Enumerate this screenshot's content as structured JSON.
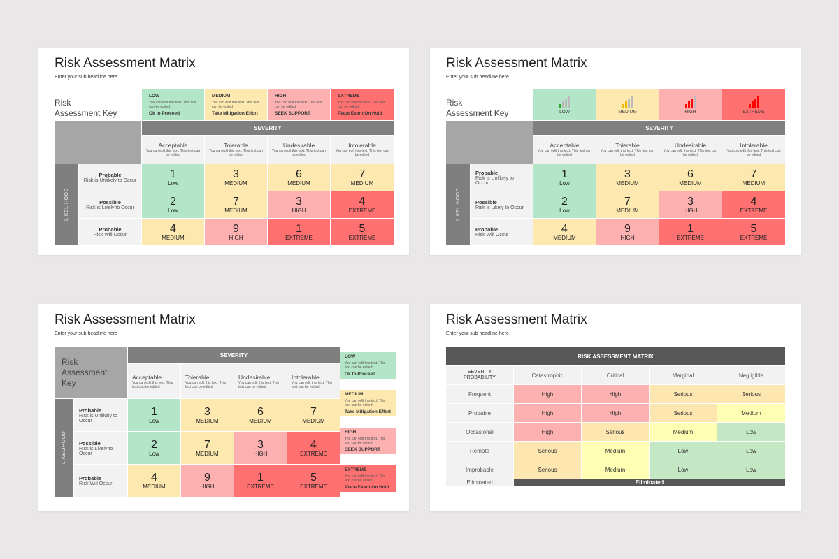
{
  "colors": {
    "low": "#b3e6c8",
    "medium": "#fde9b0",
    "high": "#fdb0b0",
    "extreme": "#ff7070"
  },
  "slides": [
    {
      "title": "Risk Assessment Matrix",
      "subtitle": "Enter your sub headline here"
    },
    {
      "title": "Risk Assessment Matrix",
      "subtitle": "Enter your sub headline here"
    },
    {
      "title": "Risk Assessment Matrix",
      "subtitle": "Enter your sub headline here"
    },
    {
      "title": "Risk Assessment Matrix",
      "subtitle": "Enter your sub headline here"
    }
  ],
  "key_label": [
    "Risk",
    "Assessment Key"
  ],
  "key": [
    {
      "level": "LOW",
      "desc": "You can edit this text. This text can be edited",
      "action": "Ok to Proceed",
      "cls": "low",
      "bars_on": 1,
      "bar_color": "#22aa22"
    },
    {
      "level": "MEDIUM",
      "desc": "You can edit this text. This text can be edited",
      "action": "Take Mitigation Effort",
      "cls": "medium",
      "bars_on": 2,
      "bar_color": "#f5b800"
    },
    {
      "level": "HIGH",
      "desc": "You can edit this text. This text can be edited",
      "action": "SEEK SUPPORT",
      "cls": "high",
      "bars_on": 3,
      "bar_color": "#ff0000"
    },
    {
      "level": "EXTREME",
      "desc": "You can edit this text. This text can be edited",
      "action": "Place Event On Hold",
      "cls": "extreme",
      "bars_on": 4,
      "bar_color": "#ff0000"
    }
  ],
  "severity_label": "SEVERITY",
  "likelihood_label": "LIKELIHOOD",
  "severity_cols": [
    {
      "name": "Acceptable",
      "desc": "You can edit this text. This text can be edited"
    },
    {
      "name": "Tolerable",
      "desc": "You can edit this text. This text can be edited"
    },
    {
      "name": "Undesirable",
      "desc": "You can edit this text. This text can be edited"
    },
    {
      "name": "Intolerable",
      "desc": "You can edit this text. This text can be edited"
    }
  ],
  "rows": [
    {
      "name": "Probable",
      "desc": "Risk is Unlikely to Occur",
      "cells": [
        {
          "n": "1",
          "l": "Low",
          "c": "low"
        },
        {
          "n": "3",
          "l": "MEDIUM",
          "c": "medium"
        },
        {
          "n": "6",
          "l": "MEDIUM",
          "c": "medium"
        },
        {
          "n": "7",
          "l": "MEDIUM",
          "c": "medium"
        }
      ]
    },
    {
      "name": "Possible",
      "desc": "Risk is Likely to Occur",
      "cells": [
        {
          "n": "2",
          "l": "Low",
          "c": "low"
        },
        {
          "n": "7",
          "l": "MEDIUM",
          "c": "medium"
        },
        {
          "n": "3",
          "l": "HIGH",
          "c": "high"
        },
        {
          "n": "4",
          "l": "EXTREME",
          "c": "extreme"
        }
      ]
    },
    {
      "name": "Probable",
      "desc": "Risk Will Occur",
      "cells": [
        {
          "n": "4",
          "l": "MEDIUM",
          "c": "medium"
        },
        {
          "n": "9",
          "l": "HIGH",
          "c": "high"
        },
        {
          "n": "1",
          "l": "EXTREME",
          "c": "extreme"
        },
        {
          "n": "5",
          "l": "EXTREME",
          "c": "extreme"
        }
      ]
    }
  ],
  "matrix2": {
    "title": "RISK ASSESSMENT MATRIX",
    "corner": [
      "SEVERITY",
      "PROBABILITY"
    ],
    "cols": [
      "Catastrophic",
      "Critical",
      "Marginal",
      "Negligible"
    ],
    "colors": {
      "High": "#fdb0b0",
      "Serious": "#fde6b0",
      "Medium": "#ffffb3",
      "Low": "#c5e8c4"
    },
    "rows": [
      {
        "name": "Frequent",
        "cells": [
          "High",
          "High",
          "Serious",
          "Serious"
        ]
      },
      {
        "name": "Probable",
        "cells": [
          "High",
          "High",
          "Serious",
          "Medium"
        ]
      },
      {
        "name": "Occasional",
        "cells": [
          "High",
          "Serious",
          "Medium",
          "Low"
        ]
      },
      {
        "name": "Remote",
        "cells": [
          "Serious",
          "Medium",
          "Low",
          "Low"
        ]
      },
      {
        "name": "Improbable",
        "cells": [
          "Serious",
          "Medium",
          "Low",
          "Low"
        ]
      }
    ],
    "last_row": {
      "name": "Eliminated",
      "value": "Eliminated"
    }
  }
}
